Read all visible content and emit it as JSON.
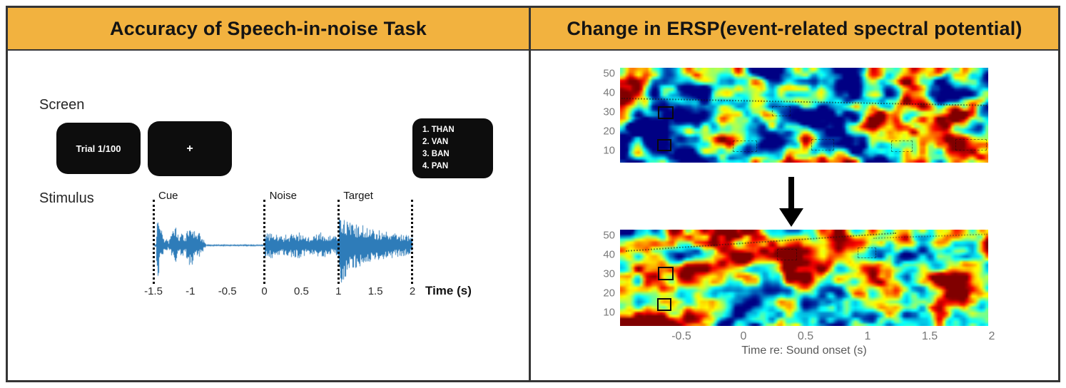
{
  "colors": {
    "header_bg": "#F2B23F",
    "border": "#353535",
    "box_bg": "#0D0D0D",
    "waveform": "#2E7CB9"
  },
  "left_panel": {
    "header": "Accuracy of Speech-in-noise Task",
    "screen_label": "Screen",
    "trial_box": "Trial 1/100",
    "fixation_box": "+",
    "choices": [
      "1. THAN",
      "2. VAN",
      "3. BAN",
      "4. PAN"
    ],
    "stimulus_label": "Stimulus",
    "segments": [
      {
        "label": "Cue",
        "time": -1.5
      },
      {
        "label": "Noise",
        "time": 0
      },
      {
        "label": "Target",
        "time": 1
      }
    ],
    "boundaries": [
      -1.5,
      0,
      1,
      2
    ],
    "x_ticks": [
      "-1.5",
      "-1",
      "-0.5",
      "0",
      "0.5",
      "1",
      "1.5",
      "2"
    ],
    "x_axis_label": "Time (s)"
  },
  "right_panel": {
    "header": "Change in ERSP(event-related spectral potential)",
    "y_ticks": [
      "50",
      "40",
      "30",
      "20",
      "10"
    ],
    "x_ticks": [
      "-0.5",
      "0",
      "0.5",
      "1",
      "1.5",
      "2"
    ],
    "x_axis_label": "Time re: Sound onset (s)"
  },
  "chart_data": [
    {
      "type": "line",
      "title": "Stimulus waveform",
      "xlabel": "Time (s)",
      "x_range": [
        -1.5,
        2
      ],
      "x_ticks": [
        -1.5,
        -1,
        -0.5,
        0,
        0.5,
        1,
        1.5,
        2
      ],
      "segments": [
        {
          "name": "Cue",
          "start": -1.5,
          "end": 0
        },
        {
          "name": "Noise",
          "start": 0,
          "end": 1
        },
        {
          "name": "Target",
          "start": 1,
          "end": 2
        }
      ],
      "description": "Audio amplitude trace: speech cue bursts from -1.5 to about -0.8 s, near-silence until 0 s, broadband noise from 0 to 1 s, target word onset at 1 s decaying toward 2 s"
    },
    {
      "type": "heatmap",
      "title": "ERSP before",
      "y_ticks": [
        50,
        40,
        30,
        20,
        10
      ],
      "x_ticks": [
        -0.5,
        0,
        0.5,
        1,
        1.5,
        2
      ],
      "xlabel": "Time re: Sound onset (s)",
      "colormap": "jet",
      "dominant_pattern": "mixed cool field (blue/cyan/green) with scattered warm patches, strongest warm activity near the left edge; two small ROI boxes outlined near low frequencies around -0.5 s"
    },
    {
      "type": "heatmap",
      "title": "ERSP after",
      "y_ticks": [
        50,
        40,
        30,
        20,
        10
      ],
      "x_ticks": [
        -0.5,
        0,
        0.5,
        1,
        1.5,
        2
      ],
      "xlabel": "Time re: Sound onset (s)",
      "colormap": "jet",
      "dominant_pattern": "warm field (red/orange) with scattered cool patches; two small ROI boxes outlined near low frequencies around -0.5 s"
    }
  ]
}
